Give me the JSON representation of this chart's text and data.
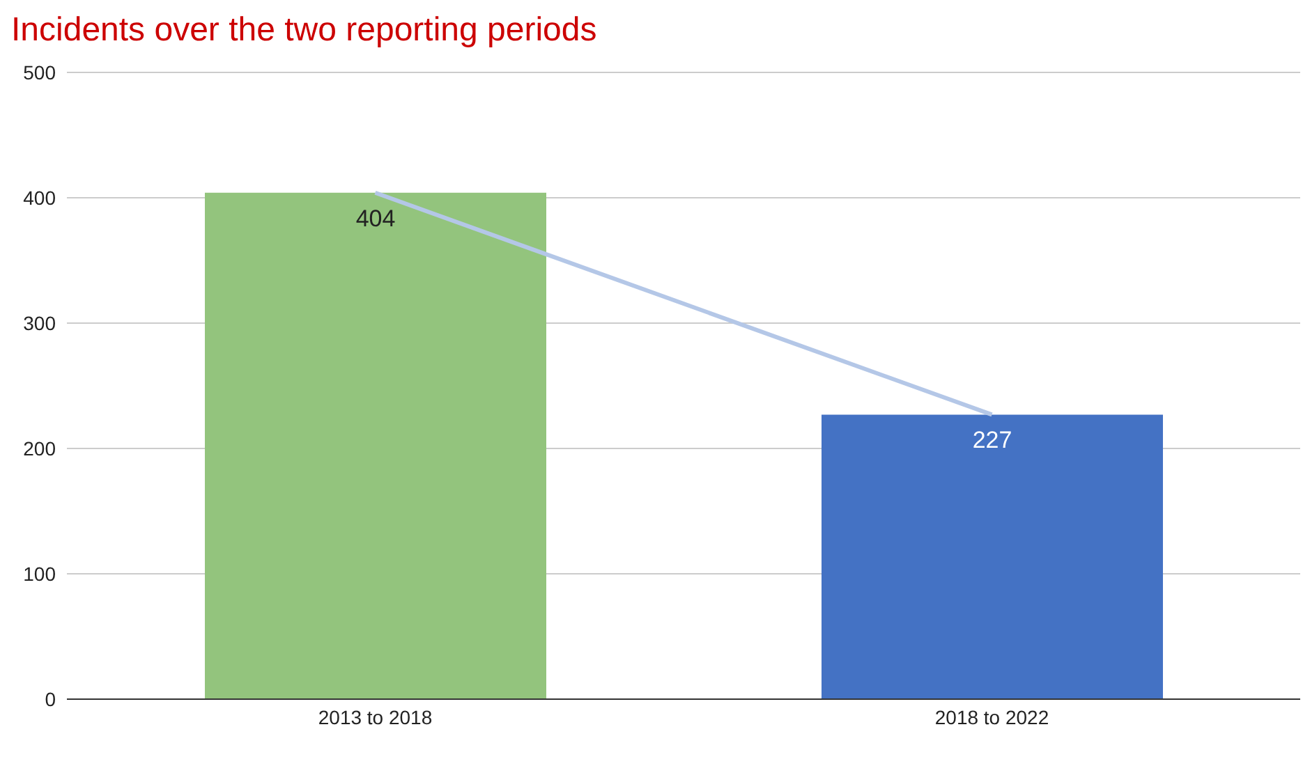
{
  "chart_data": {
    "type": "bar",
    "title": "Incidents over the two reporting periods",
    "categories": [
      "2013 to 2018",
      "2018 to 2022"
    ],
    "series": [
      {
        "values": [
          404,
          227
        ],
        "colors": [
          "#93c47d",
          "#4472c4"
        ],
        "value_labels": [
          "404",
          "227"
        ]
      },
      {
        "type": "line",
        "values": [
          404,
          227
        ],
        "color": "#b4c7e7"
      }
    ],
    "ylim": [
      0,
      500
    ],
    "yticks": [
      0,
      100,
      200,
      300,
      400,
      500
    ],
    "grid": "y",
    "legend": false
  }
}
